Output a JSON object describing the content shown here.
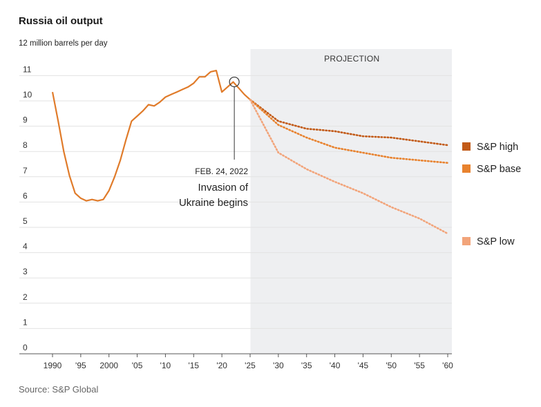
{
  "title": "Russia oil output",
  "source": "Source: S&P Global",
  "chart_data": {
    "type": "line",
    "title": "Russia oil output",
    "ylabel": "12 million barrels per day",
    "ylim": [
      0,
      12
    ],
    "xlim": [
      1990,
      2060
    ],
    "y_ticks": [
      "0",
      "1",
      "2",
      "3",
      "4",
      "5",
      "6",
      "7",
      "8",
      "9",
      "10",
      "11"
    ],
    "x_ticks": [
      {
        "value": 1990,
        "label": "1990"
      },
      {
        "value": 1995,
        "label": "'95"
      },
      {
        "value": 2000,
        "label": "2000"
      },
      {
        "value": 2005,
        "label": "'05"
      },
      {
        "value": 2010,
        "label": "'10"
      },
      {
        "value": 2015,
        "label": "'15"
      },
      {
        "value": 2020,
        "label": "'20"
      },
      {
        "value": 2025,
        "label": "'25"
      },
      {
        "value": 2030,
        "label": "'30"
      },
      {
        "value": 2035,
        "label": "'35"
      },
      {
        "value": 2040,
        "label": "'40"
      },
      {
        "value": 2045,
        "label": "'45"
      },
      {
        "value": 2050,
        "label": "'50"
      },
      {
        "value": 2055,
        "label": "'55"
      },
      {
        "value": 2060,
        "label": "'60"
      }
    ],
    "grid": true,
    "projection": {
      "label": "PROJECTION",
      "start": 2025
    },
    "annotation": {
      "date": "FEB. 24, 2022",
      "line1": "Invasion of",
      "line2": "Ukraine begins",
      "x": 2022.2,
      "y": 10.75
    },
    "historical": {
      "color": "#e07b2a",
      "x": [
        1990,
        1991,
        1992,
        1993,
        1994,
        1995,
        1996,
        1997,
        1998,
        1999,
        2000,
        2001,
        2002,
        2003,
        2004,
        2005,
        2006,
        2007,
        2008,
        2009,
        2010,
        2011,
        2012,
        2013,
        2014,
        2015,
        2016,
        2017,
        2018,
        2019,
        2020,
        2021,
        2022,
        2023,
        2024,
        2025
      ],
      "y": [
        10.35,
        9.2,
        8.0,
        7.05,
        6.35,
        6.15,
        6.05,
        6.1,
        6.05,
        6.1,
        6.45,
        7.0,
        7.65,
        8.45,
        9.2,
        9.4,
        9.6,
        9.85,
        9.8,
        9.95,
        10.15,
        10.25,
        10.35,
        10.45,
        10.55,
        10.7,
        10.95,
        10.95,
        11.15,
        11.2,
        10.35,
        10.55,
        10.75,
        10.5,
        10.25,
        10.05
      ]
    },
    "series": [
      {
        "name": "S&P high",
        "color": "#c25a17",
        "x": [
          2025,
          2030,
          2035,
          2040,
          2045,
          2050,
          2055,
          2060
        ],
        "y": [
          10.05,
          9.2,
          8.9,
          8.8,
          8.6,
          8.55,
          8.4,
          8.25
        ]
      },
      {
        "name": "S&P base",
        "color": "#e8822e",
        "x": [
          2025,
          2030,
          2035,
          2040,
          2045,
          2050,
          2055,
          2060
        ],
        "y": [
          10.05,
          9.05,
          8.55,
          8.15,
          7.95,
          7.75,
          7.65,
          7.55
        ]
      },
      {
        "name": "S&P low",
        "color": "#f2a47a",
        "x": [
          2025,
          2030,
          2035,
          2040,
          2045,
          2050,
          2055,
          2060
        ],
        "y": [
          10.05,
          7.95,
          7.3,
          6.8,
          6.35,
          5.8,
          5.35,
          4.75
        ]
      }
    ],
    "legend": "right"
  }
}
